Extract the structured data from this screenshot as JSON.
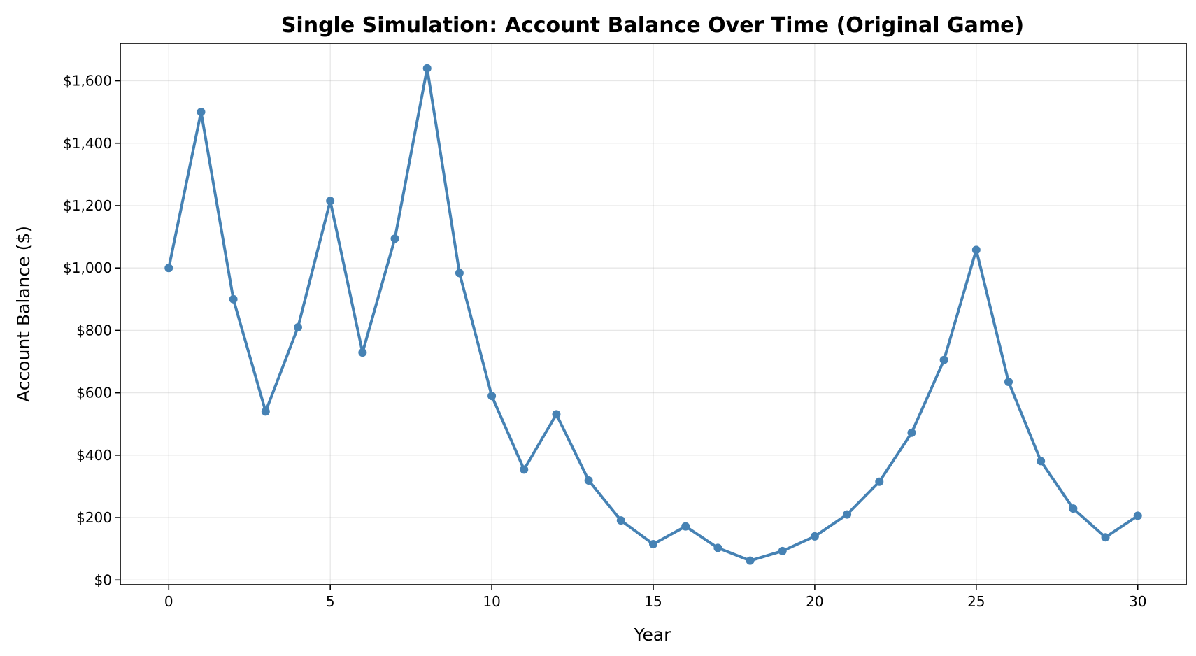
{
  "chart_data": {
    "type": "line",
    "title": "Single Simulation: Account Balance Over Time (Original Game)",
    "xlabel": "Year",
    "ylabel": "Account Balance ($)",
    "xlim": [
      -1.5,
      31.5
    ],
    "ylim": [
      -15,
      1720
    ],
    "xticks": [
      0,
      5,
      10,
      15,
      20,
      25,
      30
    ],
    "xtick_labels": [
      "0",
      "5",
      "10",
      "15",
      "20",
      "25",
      "30"
    ],
    "yticks": [
      0,
      200,
      400,
      600,
      800,
      1000,
      1200,
      1400,
      1600
    ],
    "ytick_labels": [
      "$0",
      "$200",
      "$400",
      "$600",
      "$800",
      "$1,000",
      "$1,200",
      "$1,400",
      "$1,600"
    ],
    "grid": true,
    "color": "#4682b4",
    "marker": "circle",
    "x": [
      0,
      1,
      2,
      3,
      4,
      5,
      6,
      7,
      8,
      9,
      10,
      11,
      12,
      13,
      14,
      15,
      16,
      17,
      18,
      19,
      20,
      21,
      22,
      23,
      24,
      25,
      26,
      27,
      28,
      29,
      30
    ],
    "y": [
      1000,
      1500,
      900,
      540,
      810,
      1215,
      729,
      1094,
      1640,
      984,
      590,
      354,
      531,
      319,
      191,
      115,
      172,
      103,
      62,
      93,
      140,
      210,
      315,
      472,
      705,
      1058,
      635,
      381,
      229,
      137,
      206
    ]
  }
}
